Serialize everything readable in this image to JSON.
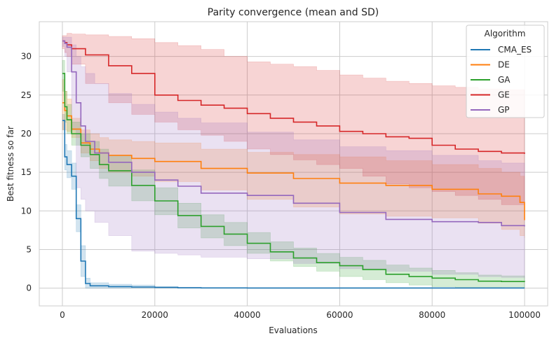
{
  "chart_data": {
    "type": "line",
    "title": "Parity convergence (mean and SD)",
    "xlabel": "Evaluations",
    "ylabel": "Best fitness so far",
    "xlim": [
      -5000,
      105000
    ],
    "ylim": [
      -2.3,
      34.5
    ],
    "xticks": [
      0,
      20000,
      40000,
      60000,
      80000,
      100000
    ],
    "yticks": [
      0,
      5,
      10,
      15,
      20,
      25,
      30
    ],
    "grid": true,
    "legend": {
      "title": "Algorithm",
      "placement": "top-right"
    },
    "series": [
      {
        "name": "CMA_ES",
        "color": "#1f77b4",
        "x": [
          0,
          500,
          1000,
          2000,
          3000,
          4000,
          5000,
          6000,
          10000,
          15000,
          20000,
          25000,
          30000,
          40000,
          60000,
          80000,
          100000
        ],
        "mean": [
          21.7,
          17,
          16,
          14.5,
          9,
          3.5,
          0.6,
          0.3,
          0.2,
          0.15,
          0.1,
          0.05,
          0.03,
          0.02,
          0.02,
          0.02,
          0.02
        ],
        "lower": [
          20.5,
          15.3,
          14.3,
          12.8,
          7.3,
          1.5,
          0,
          0,
          0,
          0,
          0,
          0,
          0,
          0,
          0,
          0,
          0
        ],
        "upper": [
          22.5,
          18.6,
          17.8,
          16.2,
          10.8,
          5.5,
          1.3,
          0.7,
          0.5,
          0.4,
          0.2,
          0.1,
          0.05,
          0.04,
          0.03,
          0.03,
          0.03
        ]
      },
      {
        "name": "DE",
        "color": "#ff7f0e",
        "x": [
          0,
          500,
          1000,
          2000,
          4000,
          6000,
          8000,
          10000,
          15000,
          20000,
          30000,
          40000,
          50000,
          60000,
          70000,
          80000,
          90000,
          95000,
          99000,
          100000
        ],
        "mean": [
          24,
          23,
          22.3,
          20.6,
          18.8,
          18,
          17.5,
          17.2,
          16.8,
          16.4,
          15.5,
          14.9,
          14.2,
          13.6,
          13.3,
          12.8,
          12.2,
          11.9,
          11.1,
          8.8
        ],
        "lower": [
          20.5,
          20.5,
          20.3,
          19.5,
          17.5,
          16.5,
          15.5,
          15,
          14.5,
          13.8,
          12.7,
          11.5,
          10.5,
          9.6,
          9.3,
          9.1,
          8.4,
          7.6,
          6.8,
          6.5
        ],
        "upper": [
          27,
          25.5,
          24.5,
          22,
          20.5,
          20,
          19.5,
          19.2,
          19,
          18.8,
          18,
          17.6,
          17.3,
          17,
          16.5,
          16,
          15.5,
          15,
          14.5,
          14
        ]
      },
      {
        "name": "GA",
        "color": "#2ca02c",
        "x": [
          0,
          500,
          1000,
          2000,
          4000,
          6000,
          8000,
          10000,
          15000,
          20000,
          25000,
          30000,
          35000,
          40000,
          45000,
          50000,
          55000,
          60000,
          65000,
          70000,
          75000,
          80000,
          85000,
          90000,
          95000,
          100000
        ],
        "mean": [
          27.8,
          23.5,
          21.8,
          20,
          18.5,
          17.3,
          16,
          15.2,
          13.3,
          11.3,
          9.4,
          8,
          7,
          5.8,
          4.7,
          3.9,
          3.3,
          2.9,
          2.4,
          1.8,
          1.5,
          1.3,
          1.1,
          0.9,
          0.85,
          0.8
        ],
        "lower": [
          25.5,
          21.5,
          20,
          18.5,
          17,
          15.5,
          14.2,
          13.2,
          11.3,
          9.5,
          7.8,
          6.5,
          5.5,
          4.5,
          3.5,
          2.8,
          2.2,
          1.5,
          1.1,
          0.7,
          0.4,
          0.2,
          0.1,
          0.1,
          0.05,
          0.05
        ],
        "upper": [
          29.5,
          25.5,
          23.8,
          21.5,
          20,
          19,
          18,
          17.2,
          15.3,
          13,
          11,
          9.5,
          8.5,
          7.2,
          6,
          5.2,
          4.5,
          4,
          3.6,
          3,
          2.6,
          2.3,
          2,
          1.7,
          1.6,
          1.5
        ]
      },
      {
        "name": "GE",
        "color": "#d62728",
        "x": [
          0,
          500,
          1000,
          2000,
          5000,
          10000,
          15000,
          20000,
          25000,
          30000,
          35000,
          40000,
          45000,
          50000,
          55000,
          60000,
          65000,
          70000,
          75000,
          80000,
          85000,
          90000,
          95000,
          100000
        ],
        "mean": [
          32,
          31.8,
          31.5,
          31,
          30.2,
          28.8,
          27.8,
          25,
          24.3,
          23.7,
          23.3,
          22.6,
          22,
          21.5,
          21,
          20.3,
          20,
          19.6,
          19.4,
          18.5,
          18,
          17.7,
          17.5,
          17.4
        ],
        "lower": [
          31,
          30.5,
          30,
          29,
          26.5,
          24,
          22.5,
          21.5,
          20.5,
          19.8,
          19,
          18,
          17.3,
          16.6,
          16,
          15.5,
          14.5,
          13.5,
          13,
          12.5,
          12,
          11.5,
          10.8,
          9.5
        ],
        "upper": [
          32.7,
          32.7,
          33,
          32.9,
          32.8,
          32.6,
          32.3,
          31.8,
          31.4,
          30.9,
          30,
          29.3,
          29,
          28.7,
          28.2,
          27.6,
          27.2,
          26.8,
          26.5,
          26.2,
          26,
          25.8,
          25.7,
          25.5
        ]
      },
      {
        "name": "GP",
        "color": "#9467bd",
        "x": [
          0,
          500,
          1000,
          2000,
          3000,
          4000,
          5000,
          7000,
          10000,
          15000,
          20000,
          25000,
          30000,
          40000,
          50000,
          60000,
          70000,
          80000,
          90000,
          95000,
          100000
        ],
        "mean": [
          32,
          31.7,
          31.2,
          28,
          24,
          21,
          19,
          17.5,
          16.3,
          15,
          14,
          13.2,
          12.3,
          12,
          11,
          9.8,
          8.9,
          8.6,
          8.5,
          8.1,
          8
        ],
        "lower": [
          31.3,
          30,
          28,
          20.5,
          13,
          11.5,
          10,
          8.5,
          6.8,
          4.8,
          4.5,
          4.3,
          4,
          3.8,
          3.2,
          2.5,
          2.2,
          1.8,
          1.5,
          1.4,
          1.3
        ],
        "upper": [
          32.5,
          32.5,
          32.5,
          31.5,
          30,
          28.7,
          27.8,
          26.5,
          25.2,
          23.8,
          22.8,
          22,
          21.4,
          20.2,
          19.2,
          18.3,
          17.8,
          17.2,
          16.5,
          16.2,
          16
        ]
      }
    ]
  }
}
